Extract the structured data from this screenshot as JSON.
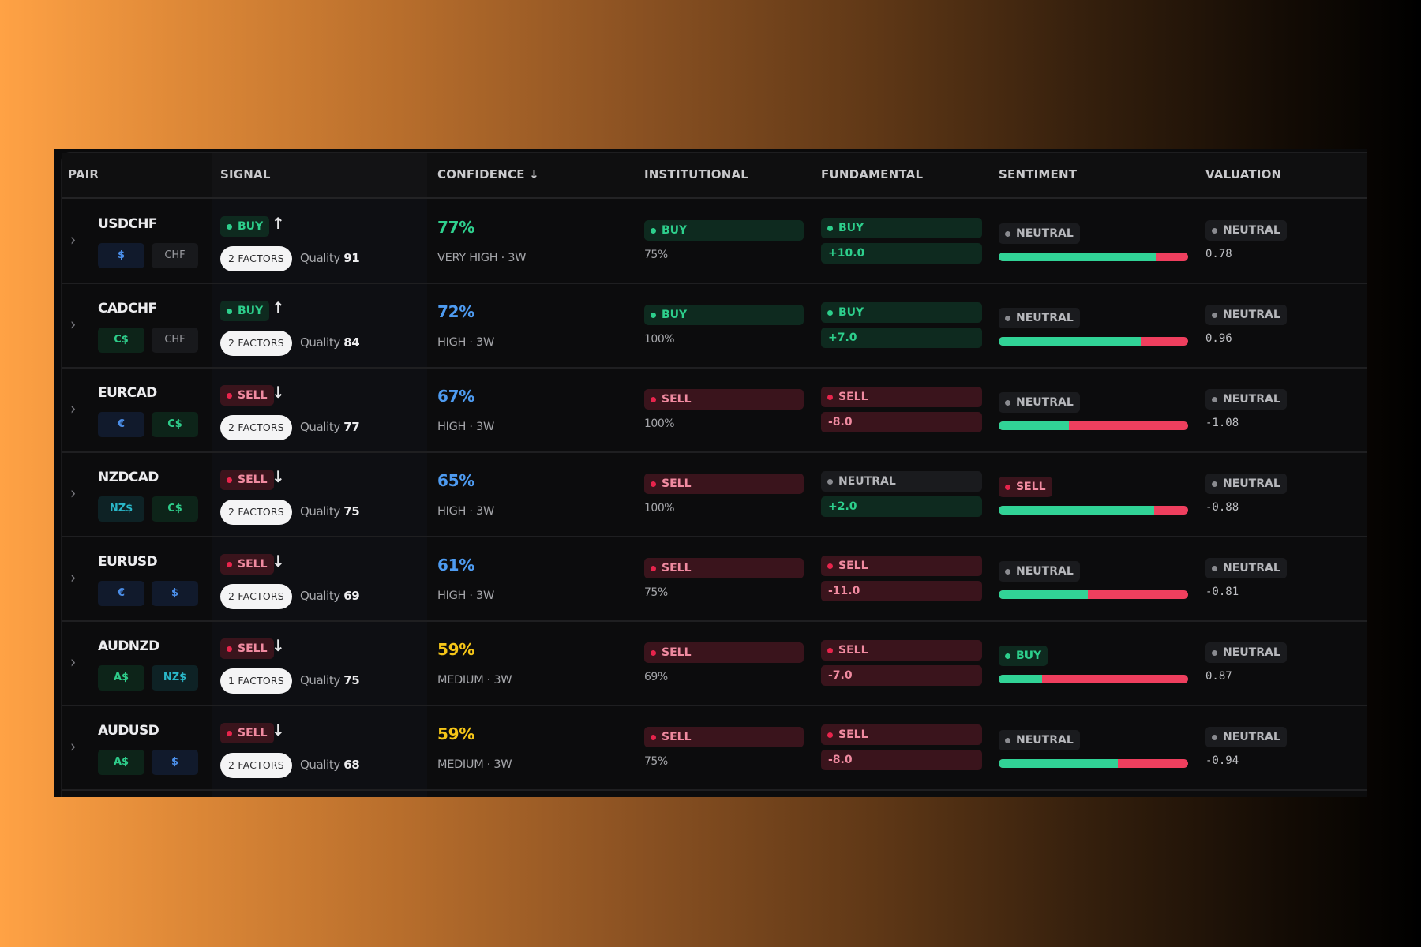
{
  "colors": {
    "buy": "#2dcf8c",
    "sell": "#e8244c",
    "neutral": "#8a8b90",
    "conf_green": "#2fd08e",
    "conf_blue": "#4e9bf0",
    "conf_yellow": "#f5c518",
    "bar_green": "#31d396",
    "bar_red": "#ef3f5e"
  },
  "header": {
    "pair": "PAIR",
    "signal": "SIGNAL",
    "confidence": "CONFIDENCE ↓",
    "institutional": "INSTITUTIONAL",
    "fundamental": "FUNDAMENTAL",
    "sentiment": "SENTIMENT",
    "valuation": "VALUATION"
  },
  "rows": [
    {
      "pair": "USDCHF",
      "chips": [
        {
          "label": "$",
          "kind": "usd"
        },
        {
          "label": "CHF",
          "kind": "chf"
        }
      ],
      "signal": {
        "label": "BUY",
        "kind": "buy",
        "arrow": "↑"
      },
      "factors": "2 FACTORS",
      "quality_label": "Quality",
      "quality": "91",
      "confidence": {
        "value": "77%",
        "color": "green",
        "sub": "VERY HIGH · 3W"
      },
      "institutional": {
        "label": "BUY",
        "kind": "buy",
        "pct": "75%"
      },
      "fundamental": {
        "label": "BUY",
        "kind": "buy",
        "value": "+10.0",
        "value_kind": "pos"
      },
      "sentiment": {
        "label": "NEUTRAL",
        "kind": "neutral",
        "bullish_pct": 83
      },
      "valuation": {
        "label": "NEUTRAL",
        "kind": "neutral",
        "value": "0.78"
      }
    },
    {
      "pair": "CADCHF",
      "chips": [
        {
          "label": "C$",
          "kind": "cad"
        },
        {
          "label": "CHF",
          "kind": "chf"
        }
      ],
      "signal": {
        "label": "BUY",
        "kind": "buy",
        "arrow": "↑"
      },
      "factors": "2 FACTORS",
      "quality_label": "Quality",
      "quality": "84",
      "confidence": {
        "value": "72%",
        "color": "blue",
        "sub": "HIGH · 3W"
      },
      "institutional": {
        "label": "BUY",
        "kind": "buy",
        "pct": "100%"
      },
      "fundamental": {
        "label": "BUY",
        "kind": "buy",
        "value": "+7.0",
        "value_kind": "pos"
      },
      "sentiment": {
        "label": "NEUTRAL",
        "kind": "neutral",
        "bullish_pct": 75
      },
      "valuation": {
        "label": "NEUTRAL",
        "kind": "neutral",
        "value": "0.96"
      }
    },
    {
      "pair": "EURCAD",
      "chips": [
        {
          "label": "€",
          "kind": "eur"
        },
        {
          "label": "C$",
          "kind": "cad"
        }
      ],
      "signal": {
        "label": "SELL",
        "kind": "sell",
        "arrow": "↓"
      },
      "factors": "2 FACTORS",
      "quality_label": "Quality",
      "quality": "77",
      "confidence": {
        "value": "67%",
        "color": "blue",
        "sub": "HIGH · 3W"
      },
      "institutional": {
        "label": "SELL",
        "kind": "sell",
        "pct": "100%"
      },
      "fundamental": {
        "label": "SELL",
        "kind": "sell",
        "value": "-8.0",
        "value_kind": "neg"
      },
      "sentiment": {
        "label": "NEUTRAL",
        "kind": "neutral",
        "bullish_pct": 37
      },
      "valuation": {
        "label": "NEUTRAL",
        "kind": "neutral",
        "value": "-1.08"
      }
    },
    {
      "pair": "NZDCAD",
      "chips": [
        {
          "label": "NZ$",
          "kind": "nzd"
        },
        {
          "label": "C$",
          "kind": "cad"
        }
      ],
      "signal": {
        "label": "SELL",
        "kind": "sell",
        "arrow": "↓"
      },
      "factors": "2 FACTORS",
      "quality_label": "Quality",
      "quality": "75",
      "confidence": {
        "value": "65%",
        "color": "blue",
        "sub": "HIGH · 3W"
      },
      "institutional": {
        "label": "SELL",
        "kind": "sell",
        "pct": "100%"
      },
      "fundamental": {
        "label": "NEUTRAL",
        "kind": "neutral",
        "value": "+2.0",
        "value_kind": "pos"
      },
      "sentiment": {
        "label": "SELL",
        "kind": "sell",
        "bullish_pct": 82
      },
      "valuation": {
        "label": "NEUTRAL",
        "kind": "neutral",
        "value": "-0.88"
      }
    },
    {
      "pair": "EURUSD",
      "chips": [
        {
          "label": "€",
          "kind": "eur"
        },
        {
          "label": "$",
          "kind": "usd"
        }
      ],
      "signal": {
        "label": "SELL",
        "kind": "sell",
        "arrow": "↓"
      },
      "factors": "2 FACTORS",
      "quality_label": "Quality",
      "quality": "69",
      "confidence": {
        "value": "61%",
        "color": "blue",
        "sub": "HIGH · 3W"
      },
      "institutional": {
        "label": "SELL",
        "kind": "sell",
        "pct": "75%"
      },
      "fundamental": {
        "label": "SELL",
        "kind": "sell",
        "value": "-11.0",
        "value_kind": "neg"
      },
      "sentiment": {
        "label": "NEUTRAL",
        "kind": "neutral",
        "bullish_pct": 47
      },
      "valuation": {
        "label": "NEUTRAL",
        "kind": "neutral",
        "value": "-0.81"
      }
    },
    {
      "pair": "AUDNZD",
      "chips": [
        {
          "label": "A$",
          "kind": "aud"
        },
        {
          "label": "NZ$",
          "kind": "nzd"
        }
      ],
      "signal": {
        "label": "SELL",
        "kind": "sell",
        "arrow": "↓"
      },
      "factors": "1 FACTORS",
      "quality_label": "Quality",
      "quality": "75",
      "confidence": {
        "value": "59%",
        "color": "yellow",
        "sub": "MEDIUM · 3W"
      },
      "institutional": {
        "label": "SELL",
        "kind": "sell",
        "pct": "69%"
      },
      "fundamental": {
        "label": "SELL",
        "kind": "sell",
        "value": "-7.0",
        "value_kind": "neg"
      },
      "sentiment": {
        "label": "BUY",
        "kind": "buy",
        "bullish_pct": 23
      },
      "valuation": {
        "label": "NEUTRAL",
        "kind": "neutral",
        "value": "0.87"
      }
    },
    {
      "pair": "AUDUSD",
      "chips": [
        {
          "label": "A$",
          "kind": "aud"
        },
        {
          "label": "$",
          "kind": "usd"
        }
      ],
      "signal": {
        "label": "SELL",
        "kind": "sell",
        "arrow": "↓"
      },
      "factors": "2 FACTORS",
      "quality_label": "Quality",
      "quality": "68",
      "confidence": {
        "value": "59%",
        "color": "yellow",
        "sub": "MEDIUM · 3W"
      },
      "institutional": {
        "label": "SELL",
        "kind": "sell",
        "pct": "75%"
      },
      "fundamental": {
        "label": "SELL",
        "kind": "sell",
        "value": "-8.0",
        "value_kind": "neg"
      },
      "sentiment": {
        "label": "NEUTRAL",
        "kind": "neutral",
        "bullish_pct": 63
      },
      "valuation": {
        "label": "NEUTRAL",
        "kind": "neutral",
        "value": "-0.94"
      }
    }
  ]
}
